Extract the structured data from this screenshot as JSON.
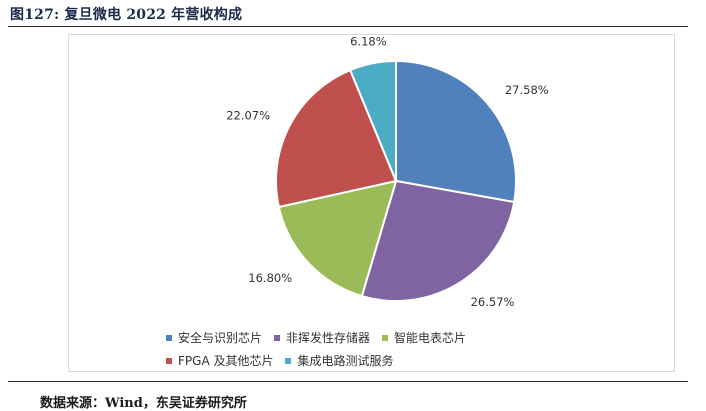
{
  "figure": {
    "title": "图127:  复旦微电 2022 年营收构成",
    "source": "数据来源：Wind，东吴证券研究所"
  },
  "chart_data": {
    "type": "pie",
    "title": "",
    "unit": "%",
    "slices": [
      {
        "name": "安全与识别芯片",
        "value": 27.58,
        "label": "27.58%",
        "color": "#4f81bd"
      },
      {
        "name": "非挥发性存储器",
        "value": 26.57,
        "label": "26.57%",
        "color": "#8064a2"
      },
      {
        "name": "智能电表芯片",
        "value": 16.8,
        "label": "16.80%",
        "color": "#9bbb59"
      },
      {
        "name": "FPGA 及其他芯片",
        "value": 22.07,
        "label": "22.07%",
        "color": "#c0504d"
      },
      {
        "name": "集成电路测试服务",
        "value": 6.18,
        "label": "6.18%",
        "color": "#4bacc6"
      }
    ],
    "start_angle": "12 o'clock",
    "direction": "clockwise",
    "legend_position": "bottom"
  }
}
